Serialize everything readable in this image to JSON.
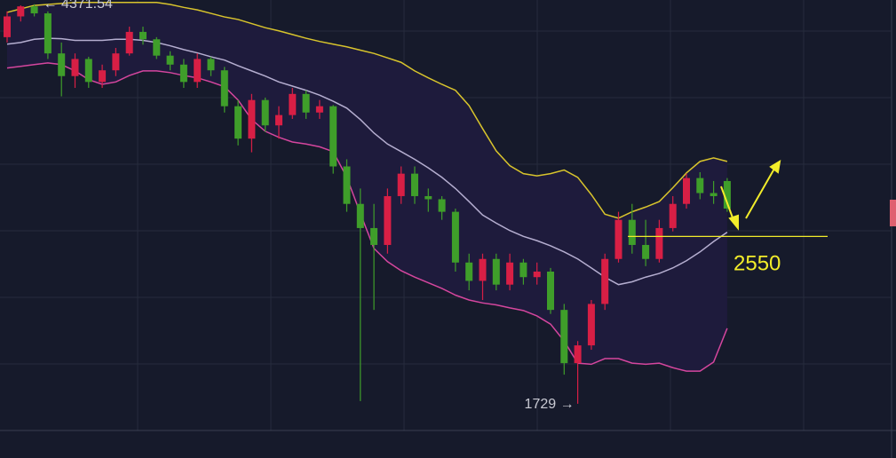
{
  "chart_data": {
    "type": "candlestick",
    "log_scale": true,
    "ylim": [
      1625,
      4415
    ],
    "up_color": "#d81f45",
    "down_color": "#3f9e2a",
    "open": [
      4050,
      4250,
      4350,
      4280,
      3900,
      3700,
      3850,
      3650,
      3750,
      3900,
      4100,
      4030,
      3880,
      3800,
      3650,
      3850,
      3750,
      3450,
      3200,
      3500,
      3300,
      3380,
      3550,
      3400,
      3450,
      3000,
      2750,
      2600,
      2500,
      2800,
      2950,
      2800,
      2780,
      2700,
      2400,
      2300,
      2420,
      2280,
      2400,
      2320,
      2350,
      2150,
      1900,
      1980,
      2180,
      2420,
      2650,
      2500,
      2420,
      2600,
      2750,
      2920,
      2820,
      2900
    ],
    "high": [
      4300,
      4360,
      4371.54,
      4300,
      4000,
      3900,
      3870,
      3800,
      3950,
      4150,
      4150,
      4050,
      3920,
      3850,
      3900,
      3870,
      3780,
      3500,
      3550,
      3520,
      3450,
      3600,
      3580,
      3500,
      3460,
      3050,
      2850,
      2750,
      2850,
      3000,
      3000,
      2850,
      2800,
      2720,
      2450,
      2450,
      2450,
      2450,
      2420,
      2400,
      2370,
      2180,
      2000,
      2200,
      2450,
      2700,
      2750,
      2650,
      2650,
      2800,
      2950,
      2960,
      2900,
      2920
    ],
    "low": [
      4000,
      4200,
      4250,
      3850,
      3530,
      3600,
      3600,
      3600,
      3700,
      3880,
      3980,
      3850,
      3750,
      3600,
      3600,
      3700,
      3400,
      3150,
      3100,
      3250,
      3200,
      3350,
      3350,
      3350,
      2950,
      2700,
      1740,
      2150,
      2450,
      2750,
      2750,
      2700,
      2650,
      2350,
      2250,
      2200,
      2250,
      2250,
      2280,
      2280,
      2130,
      1850,
      1729,
      1960,
      2150,
      2400,
      2450,
      2380,
      2400,
      2580,
      2720,
      2780,
      2750,
      2700
    ],
    "close": [
      4250,
      4350,
      4280,
      3900,
      3700,
      3850,
      3650,
      3750,
      3900,
      4100,
      4030,
      3880,
      3800,
      3650,
      3850,
      3750,
      3450,
      3200,
      3500,
      3300,
      3380,
      3550,
      3400,
      3450,
      3000,
      2750,
      2600,
      2500,
      2800,
      2950,
      2800,
      2780,
      2700,
      2400,
      2300,
      2420,
      2280,
      2400,
      2320,
      2350,
      2150,
      1900,
      1980,
      2180,
      2420,
      2650,
      2500,
      2420,
      2600,
      2750,
      2920,
      2820,
      2800,
      2720
    ],
    "series": [
      {
        "color": "#d8c42c",
        "values": [
          4290,
          4325,
          4360,
          4370,
          4380,
          4390,
          4390,
          4390,
          4390,
          4390,
          4390,
          4390,
          4370,
          4340,
          4315,
          4280,
          4245,
          4220,
          4180,
          4140,
          4110,
          4075,
          4040,
          4010,
          3985,
          3960,
          3930,
          3900,
          3860,
          3820,
          3745,
          3685,
          3630,
          3580,
          3455,
          3275,
          3110,
          3005,
          2950,
          2935,
          2950,
          2975,
          2925,
          2810,
          2685,
          2660,
          2700,
          2730,
          2765,
          2855,
          2955,
          3035,
          3060,
          3035
        ]
      },
      {
        "color": "#b5aed0",
        "values": [
          3985,
          4000,
          4030,
          4040,
          4035,
          4020,
          4020,
          4020,
          4030,
          4030,
          4020,
          4000,
          3970,
          3935,
          3905,
          3870,
          3840,
          3790,
          3745,
          3700,
          3650,
          3615,
          3580,
          3540,
          3490,
          3435,
          3345,
          3242,
          3160,
          3105,
          3050,
          2990,
          2925,
          2850,
          2765,
          2680,
          2630,
          2585,
          2550,
          2525,
          2495,
          2460,
          2420,
          2370,
          2320,
          2280,
          2295,
          2320,
          2340,
          2370,
          2410,
          2460,
          2520,
          2575
        ]
      },
      {
        "color": "#d5469e",
        "values": [
          3770,
          3785,
          3800,
          3815,
          3800,
          3745,
          3670,
          3630,
          3650,
          3705,
          3745,
          3745,
          3730,
          3705,
          3685,
          3650,
          3610,
          3500,
          3345,
          3255,
          3210,
          3175,
          3160,
          3140,
          3105,
          2925,
          2690,
          2480,
          2405,
          2355,
          2320,
          2290,
          2260,
          2225,
          2200,
          2185,
          2175,
          2160,
          2147,
          2120,
          2080,
          2000,
          1900,
          1895,
          1920,
          1920,
          1900,
          1895,
          1900,
          1880,
          1865,
          1865,
          1905,
          2060
        ]
      }
    ],
    "band_fill": "#1e1b3c",
    "hline": {
      "value": 2550,
      "label": "2550",
      "color": "#f2ec2a"
    },
    "annotations": [
      {
        "text": "← 4371.54"
      },
      {
        "text": "1729 →"
      }
    ]
  }
}
